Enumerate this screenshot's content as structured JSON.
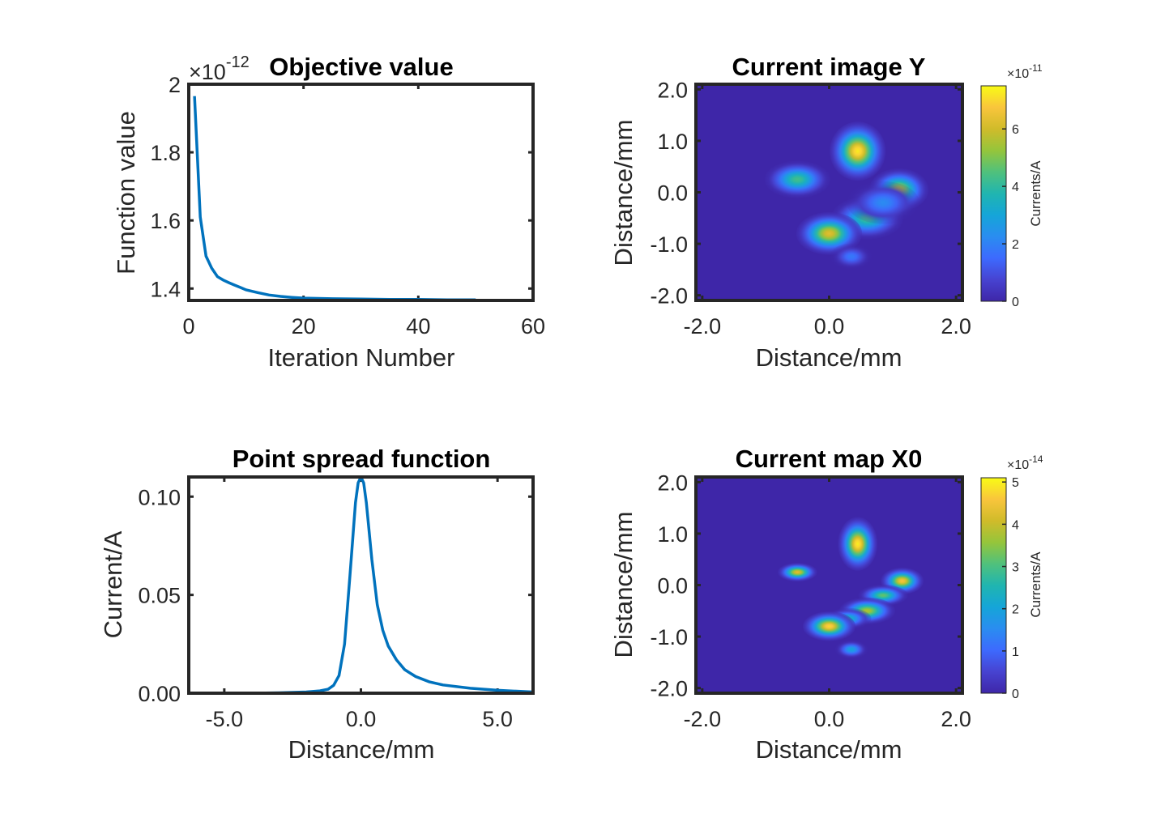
{
  "colors": {
    "line": "#0072BD",
    "axes": "#262626",
    "background_parula": "#3E26A8",
    "colormap": [
      "#3E26A8",
      "#4743D1",
      "#3D6AFE",
      "#2A8DF0",
      "#15A5D8",
      "#20B5B0",
      "#50C17C",
      "#95C53B",
      "#D0BB2A",
      "#F9C53C",
      "#F9FB15"
    ]
  },
  "chart_data": [
    {
      "type": "line",
      "title": "Objective value",
      "xlabel": "Iteration Number",
      "ylabel": "Function value",
      "exponent_prefix": "×10",
      "exponent_power": "-12",
      "xlim": [
        0,
        60
      ],
      "ylim": [
        1.365,
        2.0
      ],
      "xticks": [
        "0",
        "20",
        "40",
        "60"
      ],
      "yticks": [
        "1.4",
        "1.6",
        "1.8",
        "2"
      ],
      "xtick_values": [
        0,
        20,
        40,
        60
      ],
      "ytick_values": [
        1.4,
        1.6,
        1.8,
        2.0
      ],
      "series": [
        {
          "x": [
            1,
            2,
            3,
            4,
            5,
            6,
            7,
            8,
            9,
            10,
            12,
            14,
            16,
            18,
            20,
            25,
            30,
            35,
            40,
            45,
            50
          ],
          "y": [
            1.965,
            1.61,
            1.495,
            1.46,
            1.435,
            1.425,
            1.417,
            1.41,
            1.403,
            1.396,
            1.388,
            1.381,
            1.377,
            1.374,
            1.372,
            1.37,
            1.369,
            1.368,
            1.368,
            1.367,
            1.367
          ]
        }
      ]
    },
    {
      "type": "heatmap",
      "title": "Current image Y",
      "xlabel": "Distance/mm",
      "ylabel": "Distance/mm",
      "xlim": [
        -2.1,
        2.1
      ],
      "ylim": [
        -2.1,
        2.1
      ],
      "xticks": [
        "-2.0",
        "0.0",
        "2.0"
      ],
      "yticks": [
        "-2.0",
        "-1.0",
        "0.0",
        "1.0",
        "2.0"
      ],
      "xtick_values": [
        -2,
        0,
        2
      ],
      "ytick_values": [
        -2,
        -1,
        0,
        1,
        2
      ],
      "colorbar": {
        "label": "Currents/A",
        "exponent_prefix": "×10",
        "exponent_power": "-11",
        "ticks": [
          "0",
          "2",
          "4",
          "6"
        ],
        "tick_values": [
          0,
          2,
          4,
          6
        ],
        "range": [
          0,
          7.5
        ]
      },
      "blobs": [
        {
          "x": 0.45,
          "y": 0.8,
          "peak": 7.3,
          "sx": 0.17,
          "sy": 0.22
        },
        {
          "x": -0.5,
          "y": 0.25,
          "peak": 4.3,
          "sx": 0.2,
          "sy": 0.14
        },
        {
          "x": 1.1,
          "y": 0.05,
          "peak": 5.8,
          "sx": 0.18,
          "sy": 0.16
        },
        {
          "x": 0.6,
          "y": -0.5,
          "peak": 4.3,
          "sx": 0.22,
          "sy": 0.16
        },
        {
          "x": 0.0,
          "y": -0.8,
          "peak": 6.3,
          "sx": 0.2,
          "sy": 0.16
        },
        {
          "x": 0.35,
          "y": -1.25,
          "peak": 1.8,
          "sx": 0.13,
          "sy": 0.1
        },
        {
          "x": 0.85,
          "y": -0.2,
          "peak": 2.2,
          "sx": 0.22,
          "sy": 0.16
        }
      ]
    },
    {
      "type": "line",
      "title": "Point spread function",
      "xlabel": "Distance/mm",
      "ylabel": "Current/A",
      "xlim": [
        -6.3,
        6.3
      ],
      "ylim": [
        0,
        0.11
      ],
      "xticks": [
        "-5.0",
        "0.0",
        "5.0"
      ],
      "yticks": [
        "0.00",
        "0.05",
        "0.10"
      ],
      "xtick_values": [
        -5,
        0,
        5
      ],
      "ytick_values": [
        0,
        0.05,
        0.1
      ],
      "series": [
        {
          "x": [
            -6.3,
            -4,
            -3,
            -2,
            -1.5,
            -1.2,
            -1,
            -0.8,
            -0.6,
            -0.4,
            -0.2,
            -0.1,
            0,
            0.1,
            0.2,
            0.4,
            0.6,
            0.8,
            1,
            1.3,
            1.6,
            2,
            2.5,
            3,
            4,
            5,
            6.3
          ],
          "y": [
            0.0,
            0.0,
            0.0002,
            0.0006,
            0.0012,
            0.002,
            0.004,
            0.009,
            0.025,
            0.06,
            0.097,
            0.107,
            0.11,
            0.107,
            0.097,
            0.068,
            0.045,
            0.032,
            0.024,
            0.017,
            0.012,
            0.0085,
            0.0058,
            0.0042,
            0.0025,
            0.0015,
            0.0006
          ]
        }
      ]
    },
    {
      "type": "heatmap",
      "title": "Current map X0",
      "xlabel": "Distance/mm",
      "ylabel": "Distance/mm",
      "xlim": [
        -2.1,
        2.1
      ],
      "ylim": [
        -2.1,
        2.1
      ],
      "xticks": [
        "-2.0",
        "0.0",
        "2.0"
      ],
      "yticks": [
        "-2.0",
        "-1.0",
        "0.0",
        "1.0",
        "2.0"
      ],
      "xtick_values": [
        -2,
        0,
        2
      ],
      "ytick_values": [
        -2,
        -1,
        0,
        1,
        2
      ],
      "colorbar": {
        "label": "Currents/A",
        "exponent_prefix": "×10",
        "exponent_power": "-14",
        "ticks": [
          "0",
          "1",
          "2",
          "3",
          "4",
          "5"
        ],
        "tick_values": [
          0,
          1,
          2,
          3,
          4,
          5
        ],
        "range": [
          0,
          5.1
        ]
      },
      "blobs": [
        {
          "x": 0.45,
          "y": 0.8,
          "peak": 5.0,
          "sx": 0.12,
          "sy": 0.2
        },
        {
          "x": -0.5,
          "y": 0.25,
          "peak": 4.3,
          "sx": 0.12,
          "sy": 0.07
        },
        {
          "x": 1.15,
          "y": 0.08,
          "peak": 4.6,
          "sx": 0.13,
          "sy": 0.1
        },
        {
          "x": 0.85,
          "y": -0.2,
          "peak": 3.2,
          "sx": 0.15,
          "sy": 0.08
        },
        {
          "x": 0.6,
          "y": -0.5,
          "peak": 3.8,
          "sx": 0.17,
          "sy": 0.1
        },
        {
          "x": 0.3,
          "y": -0.65,
          "peak": 2.4,
          "sx": 0.14,
          "sy": 0.08
        },
        {
          "x": 0.0,
          "y": -0.8,
          "peak": 4.8,
          "sx": 0.16,
          "sy": 0.11
        },
        {
          "x": 0.35,
          "y": -1.25,
          "peak": 2.0,
          "sx": 0.1,
          "sy": 0.07
        }
      ]
    }
  ]
}
